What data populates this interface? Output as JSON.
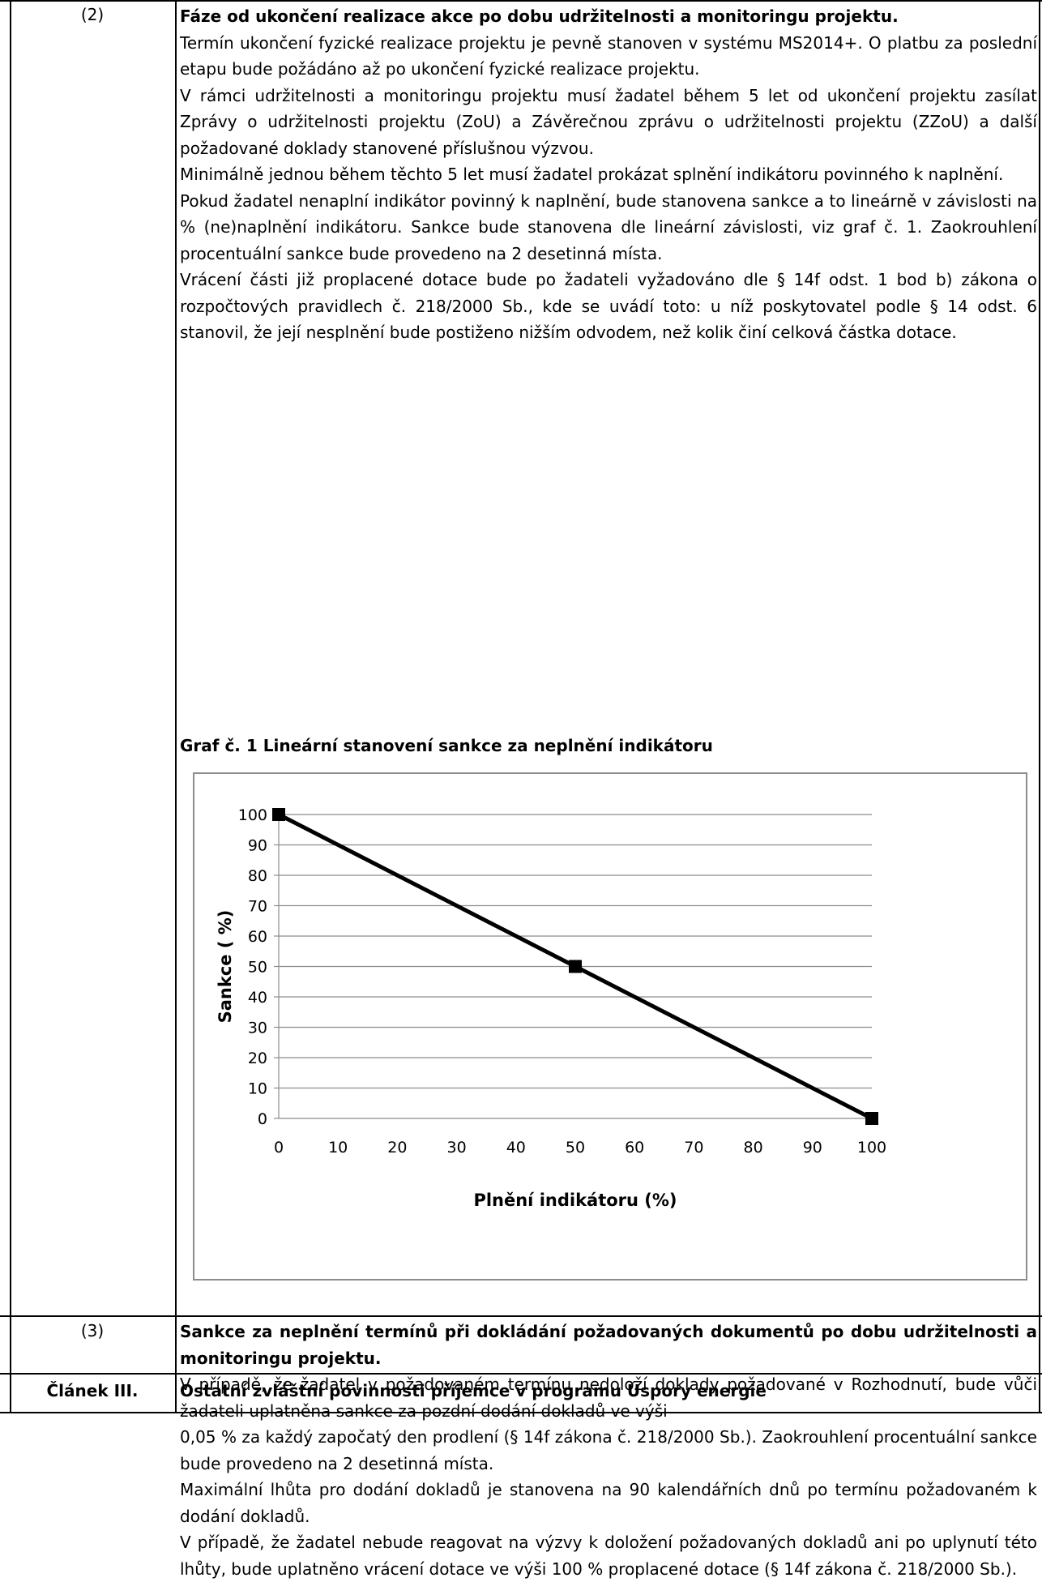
{
  "rows": [
    {
      "num": "(2)",
      "heading": "Fáze od ukončení realizace akce po dobu udržitelnosti a monitoringu projektu.",
      "paragraphs": [
        "Termín ukončení fyzické realizace projektu je pevně stanoven v systému MS2014+. O platbu za poslední etapu bude požádáno až po ukončení fyzické realizace projektu.",
        "V rámci udržitelnosti a monitoringu projektu musí žadatel během 5 let od ukončení projektu zasílat Zprávy o udržitelnosti projektu (ZoU) a Závěrečnou zprávu o udržitelnosti projektu (ZZoU) a další požadované doklady stanovené příslušnou výzvou.",
        "Minimálně jednou během těchto 5 let musí žadatel prokázat splnění indikátoru povinného k naplnění.",
        "Pokud žadatel nenaplní indikátor povinný k naplnění, bude stanovena sankce a to lineárně v závislosti na % (ne)naplnění indikátoru. Sankce bude stanovena dle lineární závislosti, viz graf č. 1.  Zaokrouhlení procentuální sankce bude provedeno na 2 desetinná místa.",
        "Vrácení části již proplacené dotace bude po žadateli vyžadováno dle § 14f odst. 1 bod b) zákona o rozpočtových pravidlech č. 218/2000 Sb., kde se uvádí toto: u níž poskytovatel podle § 14 odst. 6 stanovil, že její nesplnění bude postiženo nižším odvodem, než kolik činí celková částka dotace."
      ],
      "chart_caption": "Graf č. 1 Lineární stanovení sankce za neplnění indikátoru"
    },
    {
      "num": "(3)",
      "heading": "Sankce za neplnění termínů při dokládání požadovaných dokumentů po dobu udržitelnosti a monitoringu projektu.",
      "paragraphs": [
        "V případě, že žadatel v požadovaném termínu nedoloží doklady požadované v Rozhodnutí, bude vůči žadateli uplatněna sankce za pozdní dodání dokladů ve výši",
        "0,05 % za každý započatý den prodlení (§ 14f zákona č. 218/2000 Sb.). Zaokrouhlení procentuální sankce bude provedeno na 2 desetinná místa.",
        "Maximální lhůta pro dodání dokladů je stanovena na 90 kalendářních dnů po termínu požadovaném k dodání dokladů.",
        "V případě, že žadatel nebude reagovat na výzvy k doložení požadovaných dokladů ani po uplynutí této lhůty, bude uplatněno vrácení dotace ve výši 100 % proplacené dotace (§ 14f zákona č. 218/2000 Sb.)."
      ]
    },
    {
      "num": "Článek III.",
      "heading": "Ostatní zvláštní povinnosti příjemce v programu Úspory energie"
    }
  ],
  "chart_data": {
    "type": "line",
    "title": "",
    "xlabel": "Plnění indikátoru (%)",
    "ylabel": "Sankce ( %)",
    "x_ticks": [
      "0",
      "10",
      "20",
      "30",
      "40",
      "50",
      "60",
      "70",
      "80",
      "90",
      "100"
    ],
    "y_ticks": [
      "0",
      "10",
      "20",
      "30",
      "40",
      "50",
      "60",
      "70",
      "80",
      "90",
      "100"
    ],
    "xlim": [
      0,
      100
    ],
    "ylim": [
      0,
      100
    ],
    "grid": "horizontal",
    "series": [
      {
        "x": [
          0,
          50,
          100
        ],
        "y": [
          100,
          50,
          0
        ],
        "color": "#000000",
        "marker": "square"
      }
    ]
  }
}
